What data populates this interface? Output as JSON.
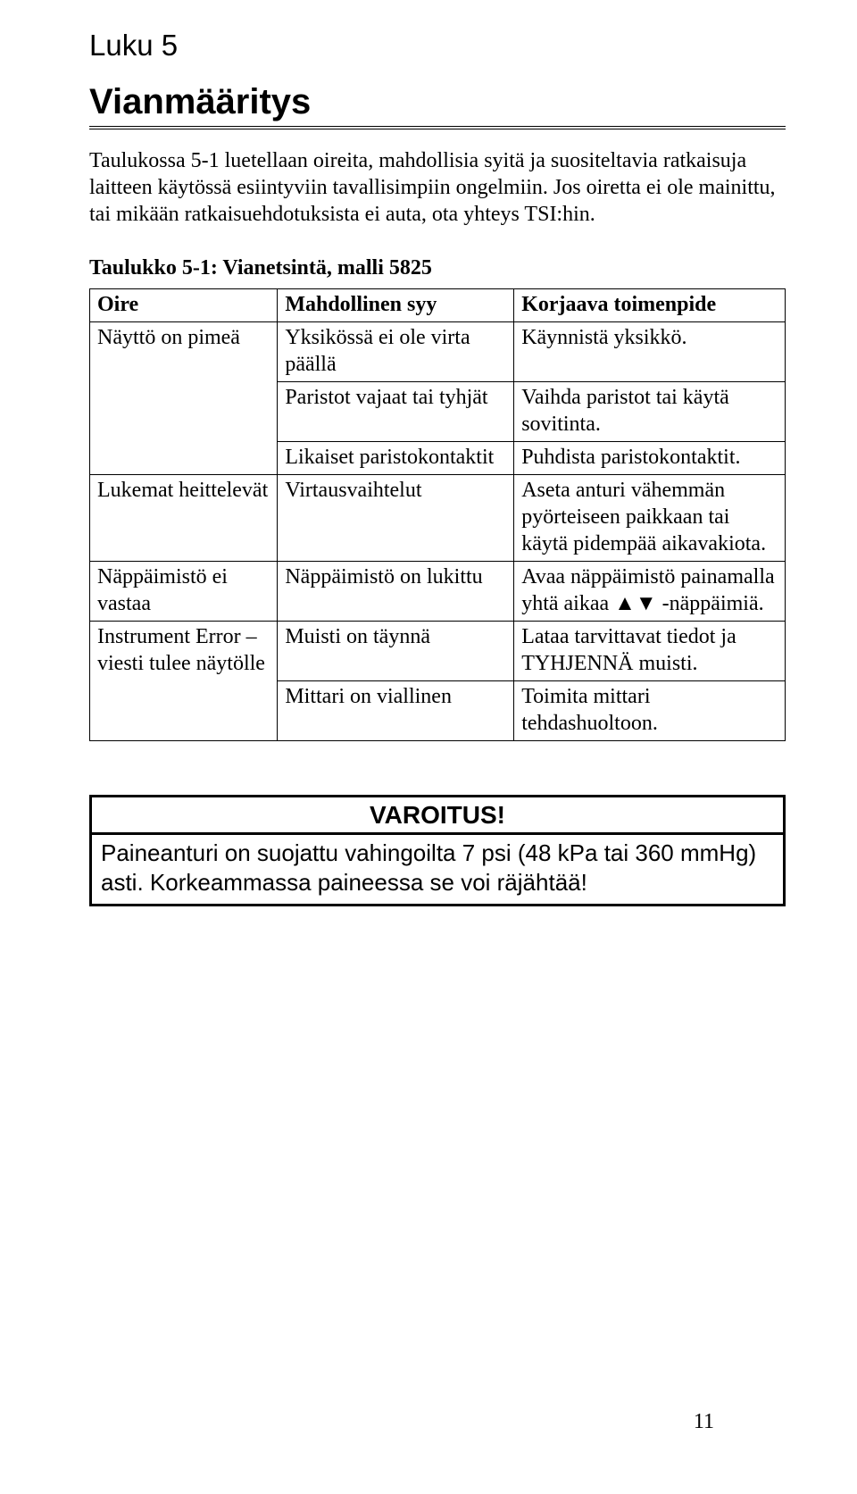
{
  "chapter": {
    "label": "Luku 5",
    "title": "Vianmääritys",
    "intro": "Taulukossa 5-1 luetellaan oireita, mahdollisia syitä ja suositeltavia ratkaisuja laitteen käytössä esiintyviin tavallisimpiin ongelmiin. Jos oiretta ei ole mainittu, tai mikään ratkaisuehdotuksista ei auta, ota yhteys TSI:hin."
  },
  "table": {
    "caption": "Taulukko 5-1:  Vianetsintä, malli 5825",
    "headers": {
      "c1": "Oire",
      "c2": "Mahdollinen syy",
      "c3": "Korjaava toimenpide"
    },
    "rows": {
      "r1": {
        "oire": "Näyttö on pimeä",
        "a": {
          "syy": "Yksikössä ei ole virta päällä",
          "fix": "Käynnistä yksikkö."
        },
        "b": {
          "syy": "Paristot vajaat tai tyhjät",
          "fix": "Vaihda paristot tai käytä sovitinta."
        },
        "c": {
          "syy": "Likaiset paristokontaktit",
          "fix": "Puhdista paristokontaktit."
        }
      },
      "r2": {
        "oire": "Lukemat heittelevät",
        "a": {
          "syy": "Virtausvaihtelut",
          "fix": "Aseta anturi vähemmän pyörteiseen paikkaan tai käytä pidempää aikavakiota."
        }
      },
      "r3": {
        "oire": "Näppäimistö ei vastaa",
        "a": {
          "syy": "Näppäimistö on lukittu",
          "fix": "Avaa näppäimistö painamalla yhtä aikaa ▲▼ -näppäimiä."
        }
      },
      "r4": {
        "oire": "Instrument Error – viesti tulee näytölle",
        "a": {
          "syy": "Muisti on täynnä",
          "fix": "Lataa tarvittavat tiedot ja TYHJENNÄ muisti."
        },
        "b": {
          "syy": "Mittari on viallinen",
          "fix": "Toimita mittari tehdashuoltoon."
        }
      }
    }
  },
  "warning": {
    "title": "VAROITUS!",
    "body": "Paineanturi on suojattu vahingoilta 7 psi (48 kPa tai 360 mmHg) asti. Korkeammassa paineessa se voi räjähtää!"
  },
  "page_number": "11"
}
